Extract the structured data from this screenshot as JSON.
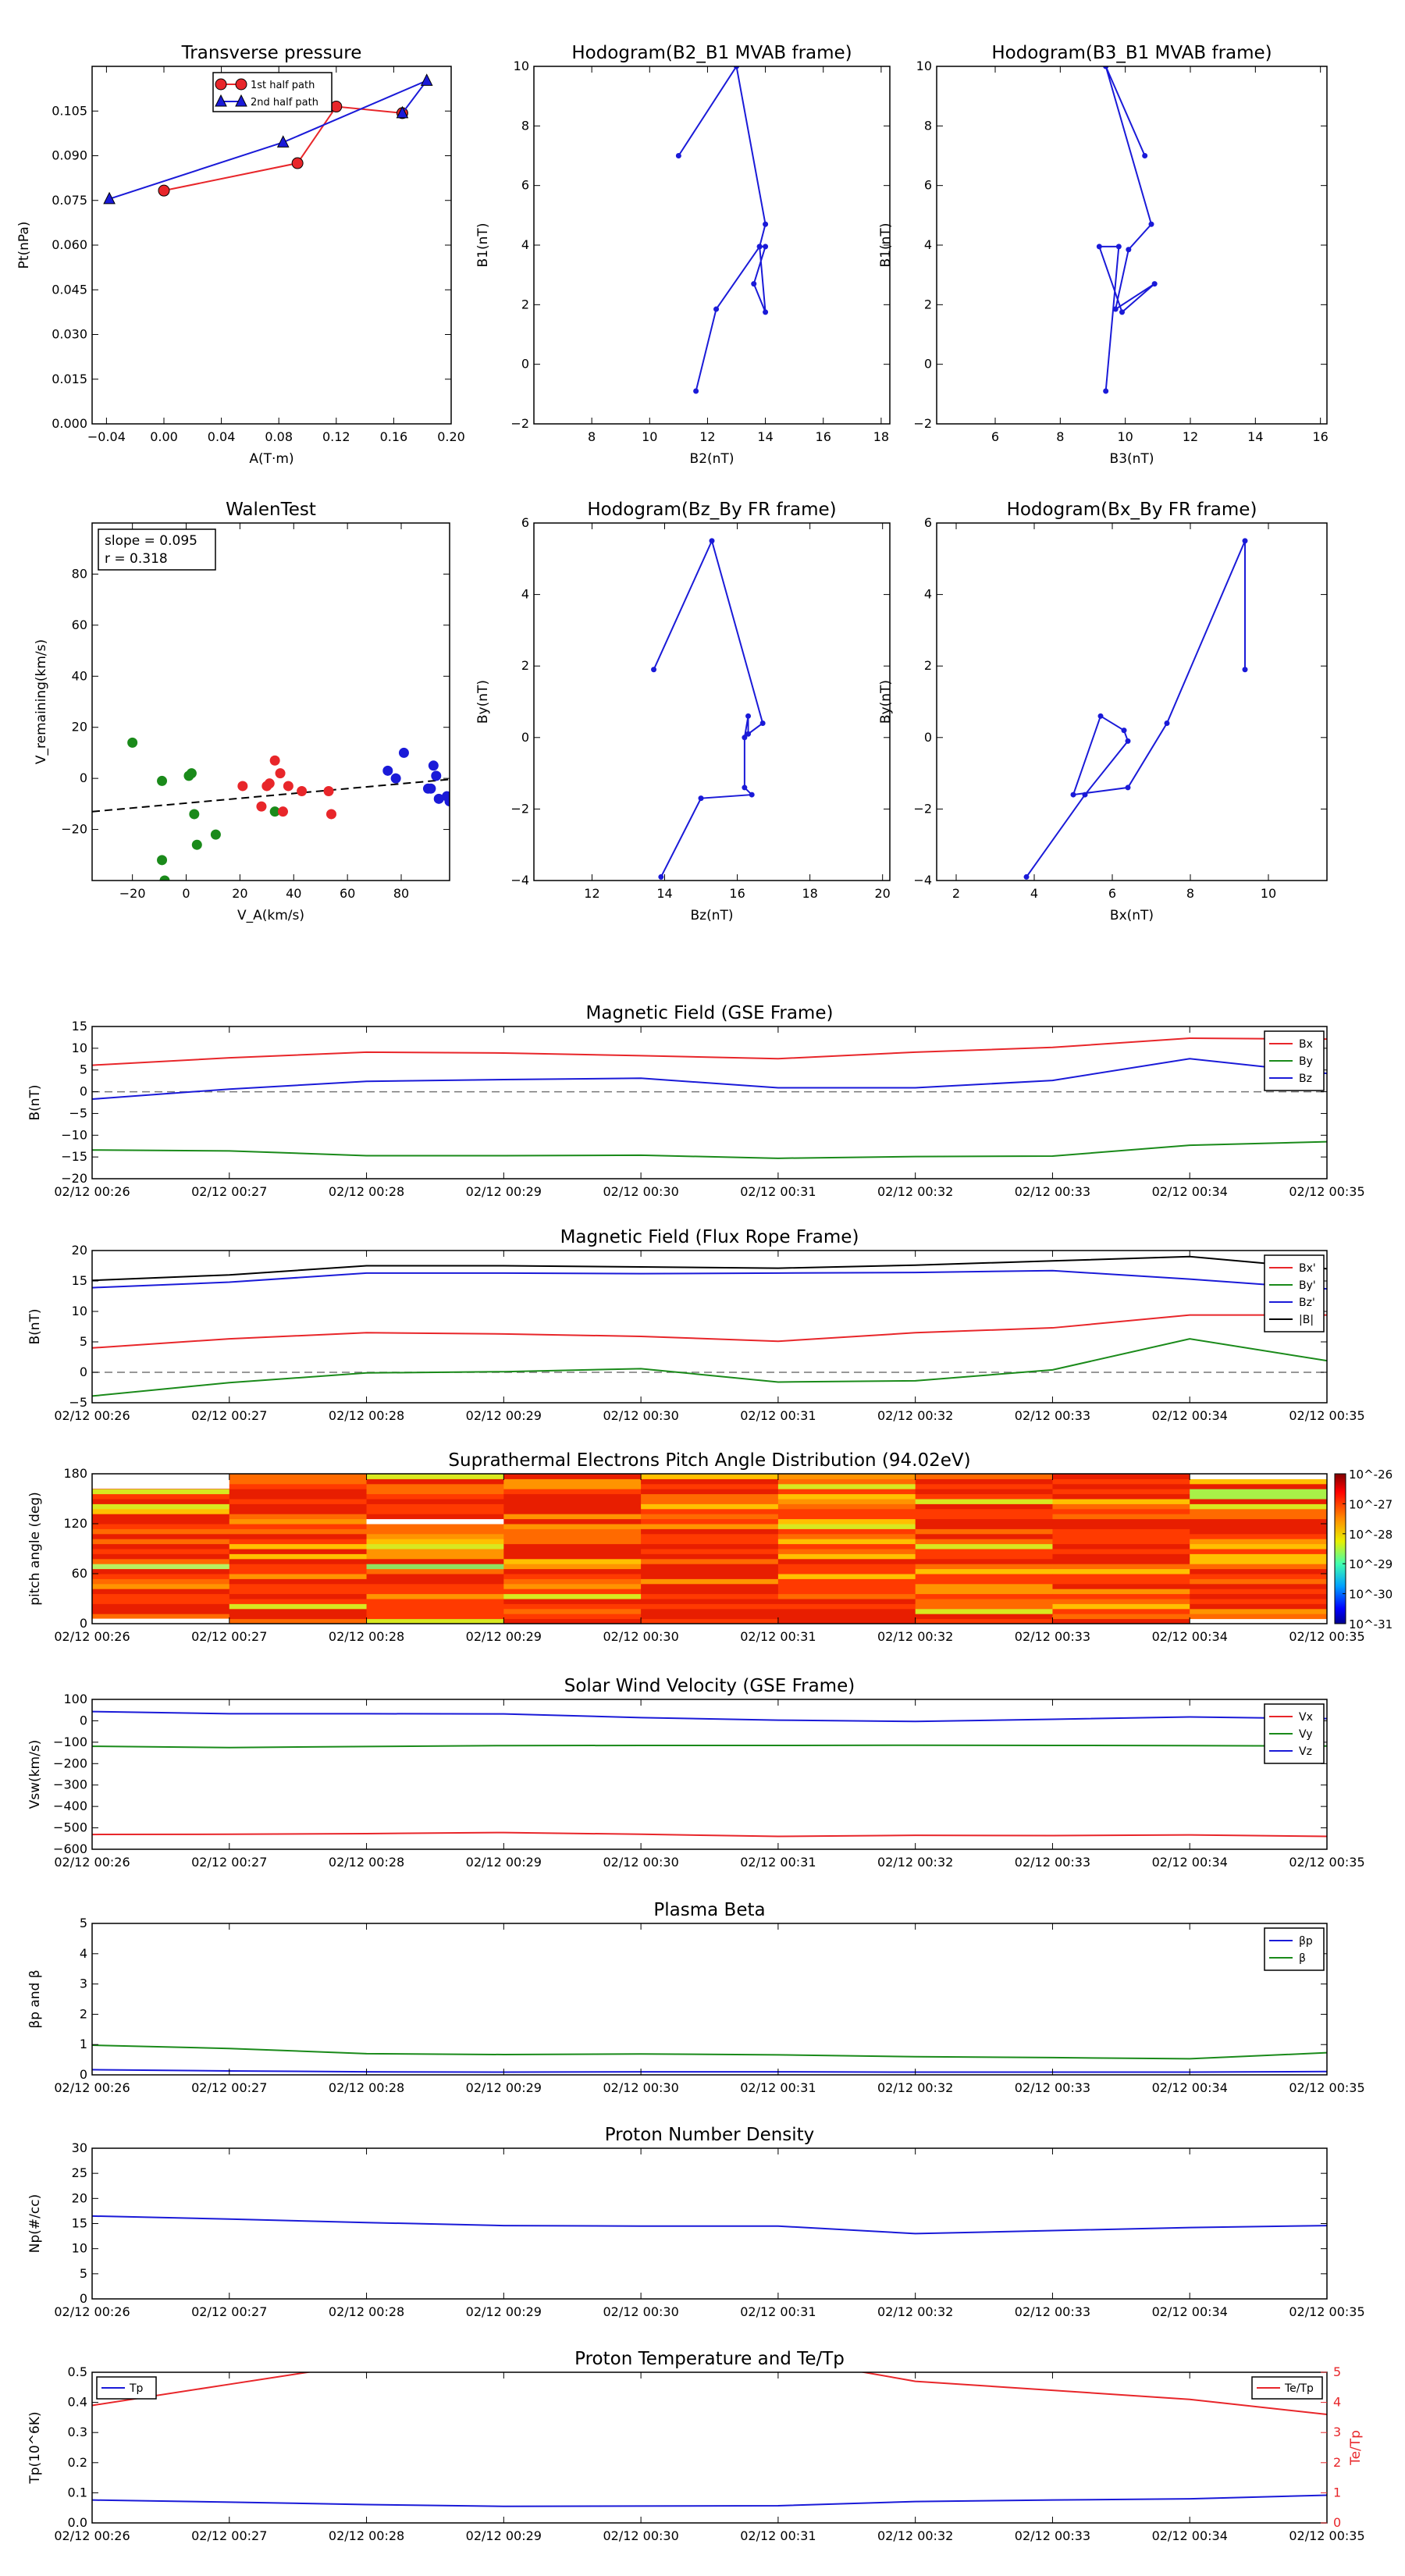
{
  "colors": {
    "red": "#e8262a",
    "green": "#1a8a1a",
    "blue": "#1a1ad8",
    "black": "#000000",
    "gray": "#777777"
  },
  "time_ticks": [
    "02/12 00:26",
    "02/12 00:27",
    "02/12 00:28",
    "02/12 00:29",
    "02/12 00:30",
    "02/12 00:31",
    "02/12 00:32",
    "02/12 00:33",
    "02/12 00:34",
    "02/12 00:35"
  ],
  "chart_data": [
    {
      "id": "pt",
      "type": "line",
      "title": "Transverse pressure",
      "xlabel": "A(T·m)",
      "ylabel": "Pt(nPa)",
      "xlim": [
        -0.05,
        0.2
      ],
      "ylim": [
        0,
        0.12
      ],
      "xticks": [
        -0.04,
        0,
        0.04,
        0.08,
        0.12,
        0.16,
        0.2
      ],
      "xticklabels": [
        "−0.04",
        "0.00",
        "0.04",
        "0.08",
        "0.12",
        "0.16",
        "0.20"
      ],
      "yticks": [
        0,
        0.015,
        0.03,
        0.045,
        0.06,
        0.075,
        0.09,
        0.105
      ],
      "yticklabels": [
        "0.000",
        "0.015",
        "0.030",
        "0.045",
        "0.060",
        "0.075",
        "0.090",
        "0.105"
      ],
      "legend": {
        "position": "top-center",
        "entries": [
          "1st half path",
          "2nd half path"
        ]
      },
      "series": [
        {
          "name": "1st half path",
          "color": "red",
          "marker": "circle",
          "x": [
            0.0,
            0.093,
            0.12,
            0.166
          ],
          "y": [
            0.0783,
            0.0875,
            0.1065,
            0.1043
          ]
        },
        {
          "name": "2nd half path",
          "color": "blue",
          "marker": "triangle",
          "x": [
            -0.038,
            0.083,
            0.183,
            0.166
          ],
          "y": [
            0.0755,
            0.0945,
            0.1152,
            0.1043
          ]
        }
      ]
    },
    {
      "id": "h1",
      "type": "line",
      "title": "Hodogram(B2_B1 MVAB frame)",
      "xlabel": "B2(nT)",
      "ylabel": "B1(nT)",
      "xlim": [
        6,
        18.3
      ],
      "ylim": [
        -2,
        10
      ],
      "xticks": [
        8,
        10,
        12,
        14,
        16,
        18
      ],
      "xticklabels": [
        "8",
        "10",
        "12",
        "14",
        "16",
        "18"
      ],
      "yticks": [
        -2,
        0,
        2,
        4,
        6,
        8,
        10
      ],
      "yticklabels": [
        "−2",
        "0",
        "2",
        "4",
        "6",
        "8",
        "10"
      ],
      "series": [
        {
          "color": "blue",
          "marker": "dot",
          "x": [
            11.0,
            13.0,
            14.0,
            13.8,
            14.0,
            13.6,
            14.0,
            13.8,
            12.3,
            11.6
          ],
          "y": [
            7.0,
            10.0,
            4.7,
            3.95,
            3.95,
            2.7,
            1.75,
            3.95,
            1.85,
            -0.9
          ]
        }
      ]
    },
    {
      "id": "h2",
      "type": "line",
      "title": "Hodogram(B3_B1 MVAB frame)",
      "xlabel": "B3(nT)",
      "ylabel": "B1(nT)",
      "xlim": [
        4.2,
        16.2
      ],
      "ylim": [
        -2,
        10
      ],
      "xticks": [
        6,
        8,
        10,
        12,
        14,
        16
      ],
      "xticklabels": [
        "6",
        "8",
        "10",
        "12",
        "14",
        "16"
      ],
      "yticks": [
        -2,
        0,
        2,
        4,
        6,
        8,
        10
      ],
      "yticklabels": [
        "−2",
        "0",
        "2",
        "4",
        "6",
        "8",
        "10"
      ],
      "series": [
        {
          "color": "blue",
          "marker": "dot",
          "x": [
            10.6,
            9.4,
            10.8,
            10.1,
            9.7,
            10.9,
            9.9,
            9.2,
            9.8,
            9.4
          ],
          "y": [
            7.0,
            10.0,
            4.7,
            3.85,
            1.85,
            2.7,
            1.75,
            3.95,
            3.95,
            -0.9
          ]
        }
      ]
    },
    {
      "id": "walen",
      "type": "scatter",
      "title": "WalenTest",
      "xlabel": "V_A(km/s)",
      "ylabel": "V_remaining(km/s)",
      "xlim": [
        -35,
        98
      ],
      "ylim": [
        -40,
        100
      ],
      "xticks": [
        -20,
        0,
        20,
        40,
        60,
        80
      ],
      "xticklabels": [
        "−20",
        "0",
        "20",
        "40",
        "60",
        "80"
      ],
      "yticks": [
        -20,
        0,
        20,
        40,
        60,
        80
      ],
      "yticklabels": [
        "−20",
        "0",
        "20",
        "40",
        "60",
        "80"
      ],
      "annotation": [
        "slope = 0.095",
        "r = 0.318"
      ],
      "fit": {
        "slope": 0.095,
        "intercept": -9.7
      },
      "series": [
        {
          "color": "green",
          "x": [
            -20,
            -9,
            1,
            2,
            3,
            4,
            11,
            -9,
            -8,
            33
          ],
          "y": [
            14,
            -1,
            1,
            2,
            -14,
            -26,
            -22,
            -32,
            -40,
            -13
          ]
        },
        {
          "color": "red",
          "x": [
            21,
            28,
            30,
            31,
            33,
            35,
            36,
            38,
            43,
            53,
            54
          ],
          "y": [
            -3,
            -11,
            -3,
            -2,
            7,
            2,
            -13,
            -3,
            -5,
            -5,
            -14
          ]
        },
        {
          "color": "blue",
          "x": [
            75,
            78,
            81,
            90,
            91,
            92,
            93,
            94,
            97,
            98
          ],
          "y": [
            3,
            0,
            10,
            -4,
            -4,
            5,
            1,
            -8,
            -7,
            -9
          ]
        }
      ]
    },
    {
      "id": "h3",
      "type": "line",
      "title": "Hodogram(Bz_By FR frame)",
      "xlabel": "Bz(nT)",
      "ylabel": "By(nT)",
      "xlim": [
        10.4,
        20.2
      ],
      "ylim": [
        -4,
        6
      ],
      "xticks": [
        12,
        14,
        16,
        18,
        20
      ],
      "xticklabels": [
        "12",
        "14",
        "16",
        "18",
        "20"
      ],
      "yticks": [
        -4,
        -2,
        0,
        2,
        4,
        6
      ],
      "yticklabels": [
        "−4",
        "−2",
        "0",
        "2",
        "4",
        "6"
      ],
      "series": [
        {
          "color": "blue",
          "marker": "dot",
          "x": [
            13.7,
            15.3,
            16.7,
            16.3,
            16.3,
            16.2,
            16.2,
            16.4,
            15.0,
            13.9
          ],
          "y": [
            1.9,
            5.5,
            0.4,
            0.1,
            0.6,
            0.0,
            -1.4,
            -1.6,
            -1.7,
            -3.9
          ]
        }
      ]
    },
    {
      "id": "h4",
      "type": "line",
      "title": "Hodogram(Bx_By FR frame)",
      "xlabel": "Bx(nT)",
      "ylabel": "By(nT)",
      "xlim": [
        1.5,
        11.5
      ],
      "ylim": [
        -4,
        6
      ],
      "xticks": [
        2,
        4,
        6,
        8,
        10
      ],
      "xticklabels": [
        "2",
        "4",
        "6",
        "8",
        "10"
      ],
      "yticks": [
        -4,
        -2,
        0,
        2,
        4,
        6
      ],
      "yticklabels": [
        "−4",
        "−2",
        "0",
        "2",
        "4",
        "6"
      ],
      "series": [
        {
          "color": "blue",
          "marker": "dot",
          "x": [
            9.4,
            9.4,
            7.4,
            6.4,
            5.0,
            5.7,
            6.3,
            6.4,
            5.3,
            3.8
          ],
          "y": [
            1.9,
            5.5,
            0.4,
            -1.4,
            -1.6,
            0.6,
            0.2,
            -0.1,
            -1.6,
            -3.9
          ]
        }
      ]
    },
    {
      "id": "bgse",
      "type": "line",
      "title": "Magnetic Field (GSE Frame)",
      "ylabel": "B(nT)",
      "ylim": [
        -20,
        15
      ],
      "yticks": [
        -20,
        -15,
        -10,
        -5,
        0,
        5,
        10,
        15
      ],
      "yticklabels": [
        "−20",
        "−15",
        "−10",
        "−5",
        "0",
        "5",
        "10",
        "15"
      ],
      "zero_line": true,
      "legend": {
        "position": "right",
        "entries": [
          "Bx",
          "By",
          "Bz"
        ]
      },
      "series": [
        {
          "name": "Bx",
          "color": "red",
          "values": [
            6.1,
            7.8,
            9.1,
            8.9,
            8.3,
            7.6,
            9.1,
            10.2,
            12.3,
            12.1
          ]
        },
        {
          "name": "By",
          "color": "green",
          "values": [
            -13.4,
            -13.6,
            -14.7,
            -14.7,
            -14.6,
            -15.3,
            -14.9,
            -14.8,
            -12.3,
            -11.5
          ]
        },
        {
          "name": "Bz",
          "color": "blue",
          "values": [
            -1.7,
            0.6,
            2.4,
            2.8,
            3.1,
            0.9,
            0.9,
            2.6,
            7.6,
            4.2
          ]
        }
      ]
    },
    {
      "id": "bfr",
      "type": "line",
      "title": "Magnetic Field (Flux Rope Frame)",
      "ylabel": "B(nT)",
      "ylim": [
        -5,
        20
      ],
      "yticks": [
        -5,
        0,
        5,
        10,
        15,
        20
      ],
      "yticklabels": [
        "−5",
        "0",
        "5",
        "10",
        "15",
        "20"
      ],
      "zero_line": true,
      "legend": {
        "position": "right",
        "entries": [
          "Bx'",
          "By'",
          "Bz'",
          "|B|"
        ]
      },
      "series": [
        {
          "name": "Bx'",
          "color": "red",
          "values": [
            4.0,
            5.5,
            6.5,
            6.3,
            5.9,
            5.1,
            6.5,
            7.3,
            9.4,
            9.4
          ]
        },
        {
          "name": "By'",
          "color": "green",
          "values": [
            -3.9,
            -1.7,
            -0.1,
            0.1,
            0.6,
            -1.6,
            -1.4,
            0.4,
            5.5,
            1.9
          ]
        },
        {
          "name": "Bz'",
          "color": "blue",
          "values": [
            13.9,
            14.8,
            16.3,
            16.3,
            16.2,
            16.3,
            16.4,
            16.7,
            15.3,
            13.7
          ]
        },
        {
          "name": "|B|",
          "color": "black",
          "values": [
            15.1,
            16.0,
            17.5,
            17.5,
            17.3,
            17.1,
            17.6,
            18.3,
            19.0,
            17.0
          ]
        }
      ]
    },
    {
      "id": "pad",
      "type": "heatmap",
      "title": "Suprathermal Electrons Pitch Angle Distribution (94.02eV)",
      "ylabel": "pitch angle (deg)",
      "ylim": [
        0,
        180
      ],
      "yticks": [
        0,
        60,
        120,
        180
      ],
      "yticklabels": [
        "0",
        "60",
        "120",
        "180"
      ],
      "colorbar": {
        "labels": [
          "10^-26",
          "10^-27",
          "10^-28",
          "10^-29",
          "10^-30",
          "10^-31"
        ]
      }
    },
    {
      "id": "vsw",
      "type": "line",
      "title": "Solar Wind Velocity (GSE Frame)",
      "ylabel": "Vsw(km/s)",
      "ylim": [
        -600,
        100
      ],
      "yticks": [
        -600,
        -500,
        -400,
        -300,
        -200,
        -100,
        0,
        100
      ],
      "yticklabels": [
        "−600",
        "−500",
        "−400",
        "−300",
        "−200",
        "−100",
        "0",
        "100"
      ],
      "legend": {
        "position": "right",
        "entries": [
          "Vx",
          "Vy",
          "Vz"
        ]
      },
      "series": [
        {
          "name": "Vx",
          "color": "red",
          "values": [
            -531,
            -530,
            -527,
            -522,
            -530,
            -540,
            -535,
            -536,
            -533,
            -540
          ]
        },
        {
          "name": "Vy",
          "color": "green",
          "values": [
            -119,
            -125,
            -120,
            -116,
            -115,
            -115,
            -114,
            -115,
            -116,
            -118
          ]
        },
        {
          "name": "Vz",
          "color": "blue",
          "values": [
            43,
            33,
            33,
            32,
            15,
            3,
            -3,
            7,
            18,
            10
          ]
        }
      ]
    },
    {
      "id": "beta",
      "type": "line",
      "title": "Plasma Beta",
      "ylabel": "βp and β",
      "ylim": [
        0,
        5
      ],
      "yticks": [
        0,
        1,
        2,
        3,
        4,
        5
      ],
      "yticklabels": [
        "0",
        "1",
        "2",
        "3",
        "4",
        "5"
      ],
      "legend": {
        "position": "right",
        "entries": [
          "βp",
          "β"
        ]
      },
      "series": [
        {
          "name": "βp",
          "color": "blue",
          "values": [
            0.17,
            0.13,
            0.1,
            0.09,
            0.1,
            0.1,
            0.09,
            0.09,
            0.09,
            0.11
          ]
        },
        {
          "name": "β",
          "color": "green",
          "values": [
            0.98,
            0.87,
            0.7,
            0.67,
            0.69,
            0.66,
            0.6,
            0.57,
            0.53,
            0.73
          ]
        }
      ]
    },
    {
      "id": "np",
      "type": "line",
      "title": "Proton Number Density",
      "ylabel": "Np(#/cc)",
      "ylim": [
        0,
        30
      ],
      "yticks": [
        0,
        5,
        10,
        15,
        20,
        25,
        30
      ],
      "yticklabels": [
        "0",
        "5",
        "10",
        "15",
        "20",
        "25",
        "30"
      ],
      "series": [
        {
          "color": "blue",
          "values": [
            16.5,
            15.9,
            15.2,
            14.6,
            14.5,
            14.5,
            13.0,
            13.6,
            14.2,
            14.6
          ]
        }
      ]
    },
    {
      "id": "tp",
      "type": "line",
      "title": "Proton Temperature and Te/Tp",
      "ylabel": "Tp(10^6K)",
      "ylim": [
        0,
        0.5
      ],
      "yticks": [
        0,
        0.1,
        0.2,
        0.3,
        0.4,
        0.5
      ],
      "yticklabels": [
        "0.0",
        "0.1",
        "0.2",
        "0.3",
        "0.4",
        "0.5"
      ],
      "ylabel2": "Te/Tp",
      "ylim2": [
        0,
        5
      ],
      "yticks2": [
        0,
        1,
        2,
        3,
        4,
        5
      ],
      "yticklabels2": [
        "0",
        "1",
        "2",
        "3",
        "4",
        "5"
      ],
      "legend": {
        "entries": [
          "Tp",
          "Te/Tp"
        ]
      },
      "series": [
        {
          "name": "Tp",
          "color": "blue",
          "values": [
            0.076,
            0.069,
            0.061,
            0.055,
            0.056,
            0.057,
            0.071,
            0.076,
            0.08,
            0.092
          ]
        },
        {
          "name": "Te/Tp",
          "color": "red",
          "axis": "right",
          "values": [
            3.9,
            4.6,
            5.3,
            5.5,
            5.5,
            5.5,
            4.7,
            4.4,
            4.1,
            3.6
          ]
        }
      ]
    }
  ]
}
